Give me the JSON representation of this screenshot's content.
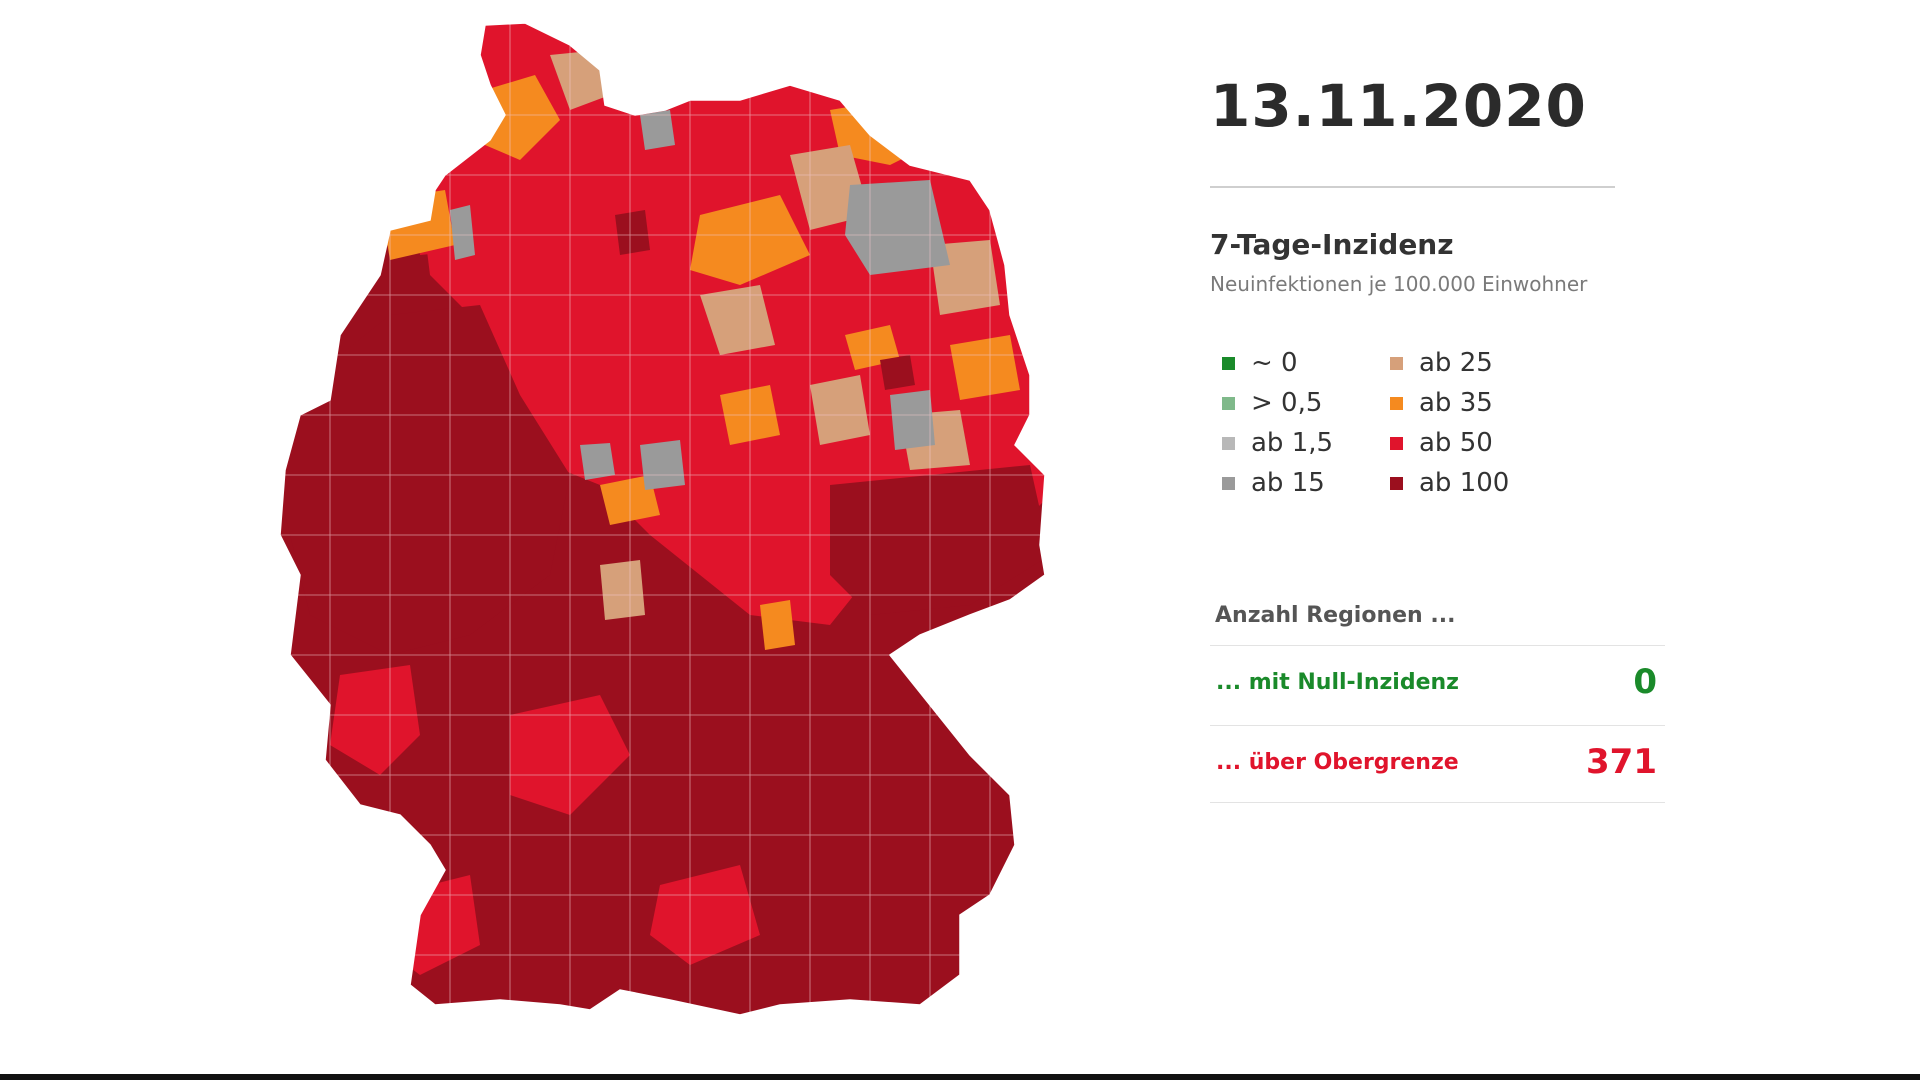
{
  "date": "13.11.2020",
  "legend": {
    "title": "7-Tage-Inzidenz",
    "subtitle": "Neuinfektionen je 100.000 Einwohner",
    "items": [
      {
        "label": "~ 0",
        "color": "#1a8a2a"
      },
      {
        "label": "> 0,5",
        "color": "#7fb98a"
      },
      {
        "label": "ab 1,5",
        "color": "#b8b8b8"
      },
      {
        "label": "ab 15",
        "color": "#9a9a9a"
      },
      {
        "label": "ab 25",
        "color": "#d6a07a"
      },
      {
        "label": "ab 35",
        "color": "#f58a1f"
      },
      {
        "label": "ab 50",
        "color": "#e0142c"
      },
      {
        "label": "ab 100",
        "color": "#9b0f1e"
      }
    ]
  },
  "counts": {
    "heading": "Anzahl Regionen ...",
    "null_label": "... mit Null-Inzidenz",
    "null_value": "0",
    "null_color": "#1a8a2a",
    "over_label": "... über Obergrenze",
    "over_value": "371",
    "over_color": "#e0142c"
  },
  "map_colors": {
    "dark_red": "#9b0f1e",
    "red": "#e0142c",
    "orange": "#f58a1f",
    "tan": "#d6a07a",
    "gray": "#9a9a9a"
  }
}
